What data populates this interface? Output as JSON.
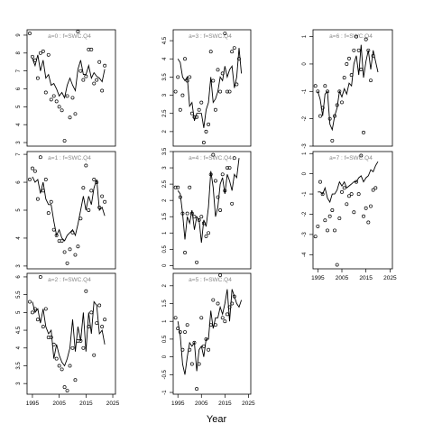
{
  "figure": {
    "xlabel": "Year"
  },
  "chart_data": [
    {
      "type": "scatter",
      "title": "a=0 : f=SWC.Q4",
      "xlim": [
        1993,
        2026
      ],
      "ylim": [
        2.8,
        9.3
      ],
      "yticks": [
        3,
        4,
        5,
        6,
        7,
        8,
        9
      ],
      "x": [
        1994,
        1995,
        1996,
        1997,
        1998,
        1999,
        2000,
        2001,
        2002,
        2003,
        2004,
        2005,
        2006,
        2007,
        2008,
        2009,
        2010,
        2011,
        2012,
        2013,
        2014,
        2015,
        2016,
        2017,
        2018,
        2019,
        2020,
        2021,
        2022,
        2023
      ],
      "points": [
        9.1,
        7.8,
        7.6,
        6.6,
        8.0,
        8.1,
        5.8,
        7.9,
        5.4,
        5.6,
        5.3,
        5.0,
        4.8,
        3.1,
        5.6,
        4.4,
        5.5,
        4.6,
        9.2,
        7.0,
        6.5,
        6.7,
        8.2,
        8.2,
        6.3,
        6.5,
        7.5,
        5.9,
        7.3,
        null
      ],
      "fit": [
        null,
        7.7,
        7.3,
        7.9,
        7.0,
        7.6,
        6.6,
        6.8,
        6.2,
        6.3,
        6.0,
        5.6,
        5.8,
        5.5,
        6.2,
        6.6,
        6.2,
        5.9,
        7.1,
        7.6,
        6.8,
        6.8,
        7.3,
        6.6,
        6.9,
        6.7,
        6.6,
        6.4,
        7.1,
        null
      ]
    },
    {
      "type": "scatter",
      "title": "a=1 : f=SWC.Q4",
      "xlim": [
        1993,
        2026
      ],
      "ylim": [
        2.9,
        7.1
      ],
      "yticks": [
        3,
        4,
        5,
        6,
        7
      ],
      "x": [
        1994,
        1995,
        1996,
        1997,
        1998,
        1999,
        2000,
        2001,
        2002,
        2003,
        2004,
        2005,
        2006,
        2007,
        2008,
        2009,
        2010,
        2011,
        2012,
        2013,
        2014,
        2015,
        2016,
        2017,
        2018,
        2019,
        2020,
        2021,
        2022,
        2023
      ],
      "points": [
        6.1,
        6.5,
        6.4,
        5.4,
        6.9,
        5.7,
        6.1,
        4.9,
        5.3,
        4.3,
        4.1,
        3.9,
        3.9,
        3.5,
        3.1,
        3.6,
        4.2,
        3.4,
        3.7,
        4.7,
        5.8,
        6.6,
        5.0,
        5.7,
        6.1,
        6.0,
        5.1,
        5.5,
        5.3,
        null
      ],
      "fit": [
        null,
        6.2,
        6.0,
        6.1,
        5.6,
        6.0,
        5.4,
        5.2,
        5.2,
        4.6,
        4.1,
        4.3,
        4.0,
        3.9,
        4.1,
        4.2,
        4.3,
        4.1,
        4.5,
        5.0,
        5.5,
        5.0,
        5.5,
        5.2,
        5.8,
        6.1,
        5.0,
        5.1,
        4.8,
        null
      ]
    },
    {
      "type": "scatter",
      "title": "a=2 : f=SWC.Q4",
      "xlim": [
        1993,
        2026
      ],
      "ylim": [
        2.7,
        6.1
      ],
      "yticks": [
        3.0,
        3.5,
        4.0,
        4.5,
        5.0,
        5.5,
        6.0
      ],
      "x": [
        1994,
        1995,
        1996,
        1997,
        1998,
        1999,
        2000,
        2001,
        2002,
        2003,
        2004,
        2005,
        2006,
        2007,
        2008,
        2009,
        2010,
        2011,
        2012,
        2013,
        2014,
        2015,
        2016,
        2017,
        2018,
        2019,
        2020,
        2021,
        2022,
        2023
      ],
      "points": [
        5.3,
        5.0,
        5.1,
        4.8,
        6.0,
        4.6,
        5.1,
        4.3,
        4.3,
        4.1,
        3.7,
        3.5,
        3.4,
        2.9,
        2.8,
        3.5,
        4.0,
        3.1,
        4.2,
        4.2,
        4.0,
        5.6,
        4.6,
        5.0,
        3.8,
        4.7,
        5.2,
        4.6,
        4.8,
        null
      ],
      "fit": [
        null,
        5.3,
        5.0,
        5.1,
        4.7,
        5.1,
        4.6,
        4.4,
        4.5,
        3.7,
        4.1,
        3.8,
        3.6,
        3.5,
        3.7,
        4.0,
        4.8,
        3.9,
        4.6,
        4.2,
        5.0,
        3.9,
        5.0,
        4.4,
        5.3,
        5.2,
        4.4,
        4.5,
        4.1,
        null
      ]
    },
    {
      "type": "scatter",
      "title": "a=3 : f=SWC.Q4",
      "xlim": [
        1993,
        2026
      ],
      "ylim": [
        1.6,
        4.8
      ],
      "yticks": [
        2.0,
        2.5,
        3.0,
        3.5,
        4.0,
        4.5
      ],
      "x": [
        1994,
        1995,
        1996,
        1997,
        1998,
        1999,
        2000,
        2001,
        2002,
        2003,
        2004,
        2005,
        2006,
        2007,
        2008,
        2009,
        2010,
        2011,
        2012,
        2013,
        2014,
        2015,
        2016,
        2017,
        2018,
        2019,
        2020,
        2021,
        2022,
        2023
      ],
      "points": [
        3.1,
        3.5,
        2.6,
        3.0,
        4.0,
        3.4,
        3.5,
        2.5,
        2.4,
        2.4,
        2.6,
        2.8,
        1.7,
        2.0,
        2.2,
        4.2,
        3.4,
        2.6,
        3.7,
        3.1,
        3.6,
        4.7,
        3.1,
        3.1,
        4.2,
        4.3,
        3.3,
        4.0,
        null,
        null
      ],
      "fit": [
        null,
        4.0,
        3.9,
        3.5,
        3.4,
        3.5,
        2.7,
        2.8,
        2.3,
        2.5,
        2.5,
        2.5,
        2.1,
        2.6,
        2.8,
        3.5,
        2.8,
        2.9,
        3.1,
        3.5,
        3.4,
        3.8,
        3.5,
        3.7,
        3.8,
        3.2,
        3.5,
        4.3,
        3.6,
        null
      ]
    },
    {
      "type": "scatter",
      "title": "a=4 : f=SWC.Q4",
      "xlim": [
        1993,
        2026
      ],
      "ylim": [
        -0.1,
        3.5
      ],
      "yticks": [
        0.0,
        0.5,
        1.0,
        1.5,
        2.0,
        2.5,
        3.0,
        3.5
      ],
      "x": [
        1994,
        1995,
        1996,
        1997,
        1998,
        1999,
        2000,
        2001,
        2002,
        2003,
        2004,
        2005,
        2006,
        2007,
        2008,
        2009,
        2010,
        2011,
        2012,
        2013,
        2014,
        2015,
        2016,
        2017,
        2018,
        2019,
        2020,
        2021,
        2022,
        2023
      ],
      "points": [
        2.4,
        2.4,
        2.1,
        1.6,
        0.4,
        1.6,
        2.4,
        1.6,
        1.5,
        0.1,
        1.4,
        1.5,
        1.3,
        0.9,
        1.0,
        2.8,
        3.4,
        2.6,
        2.1,
        1.7,
        2.8,
        2.3,
        3.0,
        3.0,
        1.9,
        3.3,
        null,
        null,
        null,
        null
      ],
      "fit": [
        null,
        2.3,
        2.2,
        1.6,
        0.8,
        1.5,
        1.3,
        1.7,
        1.1,
        1.5,
        1.4,
        0.7,
        1.4,
        1.2,
        1.8,
        2.9,
        2.4,
        1.5,
        1.8,
        2.5,
        2.7,
        2.2,
        2.8,
        2.6,
        2.3,
        2.8,
        2.7,
        3.3,
        null,
        null
      ]
    },
    {
      "type": "scatter",
      "title": "a=5 : f=SWC.Q4",
      "xlim": [
        1993,
        2026
      ],
      "ylim": [
        -1.05,
        2.35
      ],
      "yticks": [
        -1.0,
        -0.5,
        0.0,
        0.5,
        1.0,
        1.5,
        2.0
      ],
      "x": [
        1994,
        1995,
        1996,
        1997,
        1998,
        1999,
        2000,
        2001,
        2002,
        2003,
        2004,
        2005,
        2006,
        2007,
        2008,
        2009,
        2010,
        2011,
        2012,
        2013,
        2014,
        2015,
        2016,
        2017,
        2018,
        2019,
        2020,
        2021,
        2022,
        2023
      ],
      "points": [
        1.1,
        0.8,
        0.7,
        0.2,
        0.7,
        0.9,
        0.2,
        -0.2,
        0.4,
        -0.9,
        -0.2,
        1.1,
        0.3,
        0.5,
        0.2,
        0.9,
        1.6,
        0.9,
        1.5,
        2.3,
        1.1,
        1.0,
        1.2,
        1.4,
        1.5,
        1.7,
        null,
        null,
        null,
        null
      ],
      "fit": [
        null,
        1.0,
        0.6,
        -0.2,
        -0.5,
        0.0,
        0.4,
        0.3,
        0.4,
        -0.4,
        0.2,
        0.3,
        0.0,
        0.5,
        0.5,
        1.3,
        0.8,
        1.1,
        1.1,
        1.4,
        1.2,
        1.5,
        1.9,
        1.0,
        1.9,
        1.7,
        1.5,
        1.4,
        1.6,
        null
      ]
    },
    {
      "type": "scatter",
      "title": "a=6 : f=SWC.Q4",
      "xlim": [
        1993,
        2026
      ],
      "ylim": [
        -3.0,
        1.25
      ],
      "yticks": [
        -3,
        -2,
        -1,
        0,
        1
      ],
      "x": [
        1994,
        1995,
        1996,
        1997,
        1998,
        1999,
        2000,
        2001,
        2002,
        2003,
        2004,
        2005,
        2006,
        2007,
        2008,
        2009,
        2010,
        2011,
        2012,
        2013,
        2014,
        2015,
        2016,
        2017,
        2018,
        2019,
        2020,
        2021,
        2022,
        2023
      ],
      "points": [
        -0.8,
        -1.0,
        -1.9,
        -1.6,
        -0.8,
        -1.0,
        -2.0,
        -2.8,
        -1.9,
        -1.5,
        -1.0,
        -1.4,
        -0.5,
        0.0,
        0.2,
        -0.4,
        0.5,
        1.0,
        0.5,
        -0.2,
        -2.5,
        0.9,
        0.5,
        -0.6,
        0.3,
        null,
        null,
        null,
        null,
        null
      ],
      "fit": [
        null,
        -1.0,
        -1.3,
        -1.9,
        -1.1,
        -1.0,
        -2.2,
        -2.4,
        -1.9,
        -1.6,
        -1.0,
        -1.2,
        -0.9,
        -1.1,
        -0.7,
        -0.8,
        0.0,
        0.3,
        -0.4,
        0.7,
        -0.5,
        0.1,
        0.5,
        -0.2,
        0.5,
        0.1,
        -0.3,
        null,
        null,
        null
      ]
    },
    {
      "type": "scatter",
      "title": "a=7 : f=SWC.Q4",
      "xlim": [
        1993,
        2026
      ],
      "ylim": [
        -4.7,
        1.1
      ],
      "yticks": [
        -4,
        -3,
        -2,
        -1,
        0,
        1
      ],
      "x": [
        1994,
        1995,
        1996,
        1997,
        1998,
        1999,
        2000,
        2001,
        2002,
        2003,
        2004,
        2005,
        2006,
        2007,
        2008,
        2009,
        2010,
        2011,
        2012,
        2013,
        2014,
        2015,
        2016,
        2017,
        2018,
        2019,
        2020,
        2021,
        2022,
        2023
      ],
      "points": [
        -3.1,
        -2.6,
        -0.4,
        -1.0,
        -2.3,
        -2.8,
        -2.1,
        -1.8,
        -2.8,
        -4.5,
        -2.2,
        -0.9,
        -0.7,
        -1.5,
        -1.1,
        -1.0,
        -1.9,
        -0.4,
        -1.0,
        0.9,
        -2.1,
        -1.7,
        -2.4,
        -1.6,
        -0.8,
        -0.7,
        null,
        null,
        null,
        null
      ],
      "fit": [
        null,
        -0.9,
        -0.9,
        -1.0,
        -0.7,
        -1.2,
        -1.4,
        -1.0,
        -1.0,
        -0.8,
        -0.4,
        -0.6,
        -0.4,
        -0.7,
        -0.6,
        -0.5,
        -0.4,
        -0.4,
        -0.2,
        -0.1,
        -0.4,
        -0.2,
        -0.1,
        0.2,
        0.1,
        0.4,
        0.6,
        null,
        null,
        null
      ]
    }
  ]
}
